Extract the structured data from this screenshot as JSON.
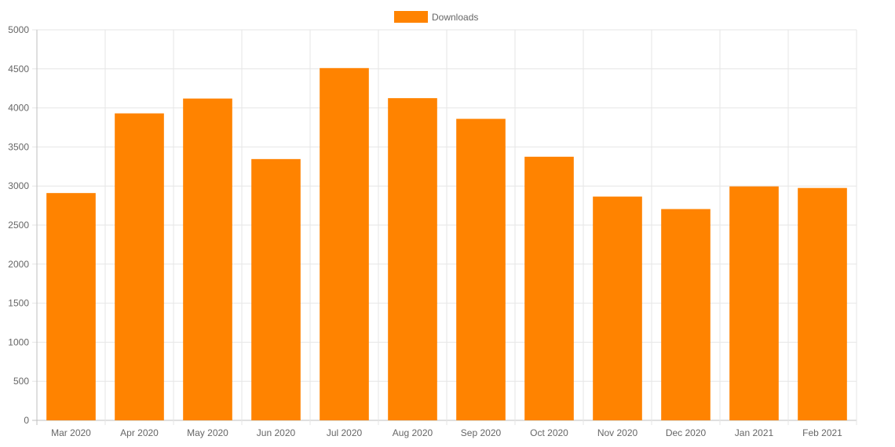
{
  "chart_data": {
    "type": "bar",
    "categories": [
      "Mar 2020",
      "Apr 2020",
      "May 2020",
      "Jun 2020",
      "Jul 2020",
      "Aug 2020",
      "Sep 2020",
      "Oct 2020",
      "Nov 2020",
      "Dec 2020",
      "Jan 2021",
      "Feb 2021"
    ],
    "series": [
      {
        "name": "Downloads",
        "color": "#FF8300",
        "values": [
          2910,
          3930,
          4120,
          3345,
          4510,
          4125,
          3860,
          3375,
          2865,
          2705,
          2995,
          2975
        ]
      }
    ],
    "ylim": [
      0,
      5000
    ],
    "yticks": [
      "0",
      "500",
      "1000",
      "1500",
      "2000",
      "2500",
      "3000",
      "3500",
      "4000",
      "4500",
      "5000"
    ],
    "grid": true,
    "legend_position": "top-center"
  }
}
